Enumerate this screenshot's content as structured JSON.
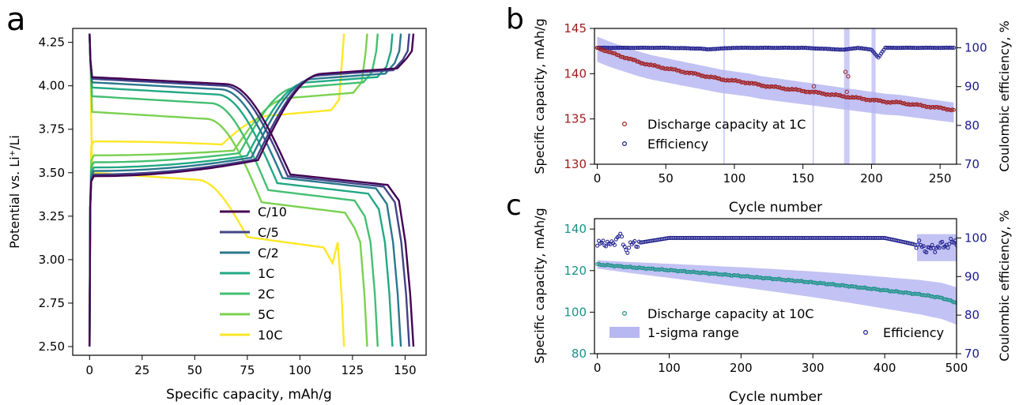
{
  "panels": {
    "a": "a",
    "b": "b",
    "c": "c"
  },
  "chart_data": [
    {
      "panel": "a",
      "type": "line",
      "xlabel": "Specific capacity, mAh/g",
      "ylabel": "Potential vs. Li⁺/Li",
      "xlim": [
        -8,
        160
      ],
      "ylim": [
        2.45,
        4.33
      ],
      "xticks": [
        0,
        25,
        50,
        75,
        100,
        125,
        150
      ],
      "yticks": [
        2.5,
        2.75,
        3.0,
        3.25,
        3.5,
        3.75,
        4.0,
        4.25
      ],
      "grid": false,
      "legend_position": "center-bottom",
      "series": [
        {
          "name": "C/10",
          "color": "#440154",
          "capacity": 154,
          "charge_plateau": 4.09,
          "discharge_plateau": 3.46,
          "charge_start": 3.48,
          "discharge_start": 4.05
        },
        {
          "name": "C/5",
          "color": "#414487",
          "capacity": 152,
          "charge_plateau": 4.08,
          "discharge_plateau": 3.45,
          "charge_start": 3.49,
          "discharge_start": 4.04
        },
        {
          "name": "C/2",
          "color": "#2a788e",
          "capacity": 148,
          "charge_plateau": 4.06,
          "discharge_plateau": 3.44,
          "charge_start": 3.51,
          "discharge_start": 4.02
        },
        {
          "name": "1C",
          "color": "#22a884",
          "capacity": 144,
          "charge_plateau": 4.04,
          "discharge_plateau": 3.41,
          "charge_start": 3.53,
          "discharge_start": 3.99
        },
        {
          "name": "2C",
          "color": "#43bf71",
          "capacity": 137,
          "charge_plateau": 4.01,
          "discharge_plateau": 3.37,
          "charge_start": 3.56,
          "discharge_start": 3.94
        },
        {
          "name": "5C",
          "color": "#7ad151",
          "capacity": 132,
          "charge_plateau": 3.95,
          "discharge_plateau": 3.3,
          "charge_start": 3.6,
          "discharge_start": 3.85
        },
        {
          "name": "10C",
          "color": "#fde725",
          "capacity": 121,
          "charge_plateau": 3.85,
          "discharge_plateau": 3.1,
          "charge_start": 3.68,
          "discharge_start": 3.5
        }
      ]
    },
    {
      "panel": "b",
      "type": "scatter",
      "xlabel": "Cycle number",
      "ylabel_left": "Specific capacity, mAh/g",
      "ylabel_right": "Coulombic efficiency, %",
      "xlim": [
        -2,
        262
      ],
      "ylim_left": [
        130,
        145
      ],
      "ylim_right": [
        70,
        105
      ],
      "xticks": [
        0,
        50,
        100,
        150,
        200,
        250
      ],
      "yticks_left": [
        130,
        135,
        140,
        145
      ],
      "yticks_right": [
        70,
        80,
        90,
        100
      ],
      "left_axis_color": "#a01d1d",
      "right_axis_color": "#1c1c8c",
      "band_color": "#b7b7f2",
      "grid": false,
      "legend_position": "bottom-left",
      "series": [
        {
          "name": "Discharge capacity at 1C",
          "color": "#a01d1d",
          "axis": "left",
          "x": [
            0,
            10,
            20,
            30,
            40,
            50,
            60,
            70,
            80,
            90,
            100,
            110,
            120,
            130,
            140,
            150,
            160,
            170,
            180,
            190,
            200,
            210,
            220,
            230,
            240,
            250,
            260
          ],
          "y": [
            142.9,
            142.3,
            141.8,
            141.3,
            140.9,
            140.6,
            140.3,
            140.0,
            139.7,
            139.4,
            139.2,
            139.0,
            138.7,
            138.5,
            138.3,
            138.1,
            137.9,
            137.7,
            137.5,
            137.3,
            137.1,
            136.9,
            136.8,
            136.6,
            136.4,
            136.2,
            136.0
          ]
        },
        {
          "name": "Efficiency",
          "color": "#1c1c8c",
          "axis": "right",
          "x": [
            0,
            50,
            75,
            80,
            100,
            150,
            180,
            190,
            200,
            205,
            210,
            260
          ],
          "y": [
            100,
            100,
            99.8,
            99.6,
            100,
            100,
            99.5,
            100,
            99.5,
            97.5,
            100,
            100
          ]
        }
      ]
    },
    {
      "panel": "c",
      "type": "scatter",
      "xlabel": "Cycle number",
      "ylabel_left": "Specific capacity, mAh/g",
      "ylabel_right": "Coulombic efficiency, %",
      "xlim": [
        -4,
        500
      ],
      "ylim_left": [
        80,
        145
      ],
      "ylim_right": [
        70,
        105
      ],
      "xticks": [
        0,
        100,
        200,
        300,
        400,
        500
      ],
      "yticks_left": [
        80,
        100,
        120,
        140
      ],
      "yticks_right": [
        70,
        80,
        90,
        100
      ],
      "left_axis_color": "#1b9287",
      "right_axis_color": "#1c1c8c",
      "band_color": "#b7b7f2",
      "grid": false,
      "legend_position": "bottom",
      "series": [
        {
          "name": "Discharge capacity at 10C",
          "color": "#1b9287",
          "axis": "left",
          "x": [
            0,
            50,
            100,
            150,
            200,
            250,
            300,
            350,
            400,
            450,
            480,
            500
          ],
          "y": [
            123,
            121.5,
            120.2,
            118.8,
            117.4,
            115.9,
            114.3,
            112.5,
            110.5,
            108.5,
            106.8,
            104.5
          ]
        },
        {
          "name": "1-sigma range",
          "type": "band",
          "color": "#b7b7f2"
        },
        {
          "name": "Efficiency",
          "color": "#1c1c8c",
          "axis": "right",
          "x": [
            0,
            10,
            20,
            30,
            40,
            50,
            100,
            200,
            300,
            400,
            450,
            460,
            470,
            480,
            490,
            500
          ],
          "y": [
            98,
            99,
            98,
            101,
            97,
            98.5,
            100,
            100,
            100,
            100,
            98,
            97,
            97.5,
            98,
            98.5,
            99
          ]
        }
      ]
    }
  ]
}
